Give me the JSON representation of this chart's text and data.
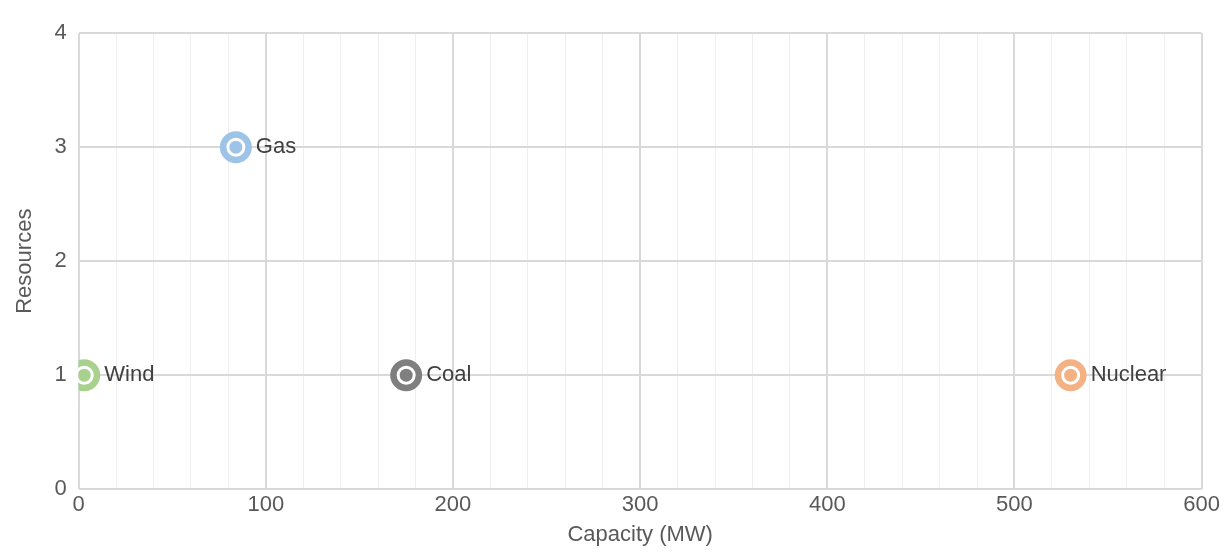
{
  "chart_data": {
    "type": "scatter",
    "xlabel": "Capacity (MW)",
    "ylabel": "Resources",
    "xlim": [
      0,
      600
    ],
    "ylim": [
      0,
      4
    ],
    "xticks": [
      0,
      {
        "value": 20,
        "label": null
      },
      {
        "value": 40,
        "label": null
      },
      {
        "value": 60,
        "label": null
      },
      {
        "value": 80,
        "label": null
      },
      100,
      {
        "value": 120,
        "label": null
      },
      {
        "value": 140,
        "label": null
      },
      {
        "value": 160,
        "label": null
      },
      {
        "value": 180,
        "label": null
      },
      200,
      {
        "value": 220,
        "label": null
      },
      {
        "value": 240,
        "label": null
      },
      {
        "value": 260,
        "label": null
      },
      {
        "value": 280,
        "label": null
      },
      300,
      {
        "value": 320,
        "label": null
      },
      {
        "value": 340,
        "label": null
      },
      {
        "value": 360,
        "label": null
      },
      {
        "value": 380,
        "label": null
      },
      400,
      {
        "value": 420,
        "label": null
      },
      {
        "value": 440,
        "label": null
      },
      {
        "value": 460,
        "label": null
      },
      {
        "value": 480,
        "label": null
      },
      500,
      {
        "value": 520,
        "label": null
      },
      {
        "value": 540,
        "label": null
      },
      {
        "value": 560,
        "label": null
      },
      {
        "value": 580,
        "label": null
      },
      600
    ],
    "yticks": [
      0,
      1,
      2,
      3,
      4
    ],
    "grid": true,
    "legend": false,
    "marker": "circle",
    "series": [
      {
        "name": "Wind",
        "color": "#a9d18e",
        "x": [
          3
        ],
        "values": [
          1
        ]
      },
      {
        "name": "Gas",
        "color": "#9dc3e6",
        "x": [
          84
        ],
        "values": [
          3
        ]
      },
      {
        "name": "Coal",
        "color": "#7f7f7f",
        "x": [
          175
        ],
        "values": [
          1
        ]
      },
      {
        "name": "Nuclear",
        "color": "#f4b183",
        "x": [
          530
        ],
        "values": [
          1
        ]
      }
    ]
  }
}
